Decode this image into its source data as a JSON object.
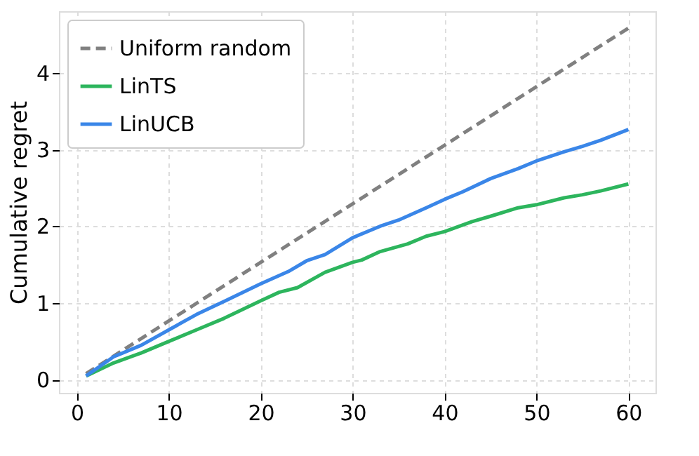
{
  "chart_data": {
    "type": "line",
    "ylabel": "Cumulative regret",
    "xlim": [
      -1.95,
      62.95
    ],
    "ylim": [
      -0.17,
      4.8
    ],
    "xticks": [
      0,
      10,
      20,
      30,
      40,
      50,
      60
    ],
    "yticks": [
      0,
      1,
      2,
      3,
      4
    ],
    "grid": true,
    "legend": "top left",
    "series": [
      {
        "name": "Uniform random",
        "color": "#808080",
        "line_style": "dashed",
        "x": [
          1,
          60
        ],
        "values": [
          0.08,
          4.58
        ]
      },
      {
        "name": "LinTS",
        "color": "#2db55d",
        "line_style": "solid",
        "x": [
          1,
          4,
          7,
          10,
          13,
          16,
          20,
          22,
          24,
          27,
          30,
          31,
          33,
          36,
          38,
          40,
          43,
          45,
          48,
          50,
          53,
          55,
          57,
          60
        ],
        "values": [
          0.05,
          0.22,
          0.35,
          0.5,
          0.65,
          0.8,
          1.03,
          1.14,
          1.2,
          1.4,
          1.53,
          1.56,
          1.67,
          1.77,
          1.87,
          1.93,
          2.06,
          2.13,
          2.24,
          2.28,
          2.37,
          2.41,
          2.46,
          2.55
        ]
      },
      {
        "name": "LinUCB",
        "color": "#3a86e8",
        "line_style": "solid",
        "x": [
          1,
          4,
          7,
          10,
          13,
          16,
          20,
          23,
          25,
          27,
          30,
          33,
          35,
          38,
          40,
          42,
          45,
          48,
          50,
          53,
          55,
          57,
          60
        ],
        "values": [
          0.05,
          0.3,
          0.45,
          0.65,
          0.85,
          1.02,
          1.25,
          1.41,
          1.55,
          1.63,
          1.85,
          2.0,
          2.08,
          2.24,
          2.35,
          2.45,
          2.62,
          2.75,
          2.85,
          2.97,
          3.04,
          3.12,
          3.26
        ]
      }
    ]
  }
}
